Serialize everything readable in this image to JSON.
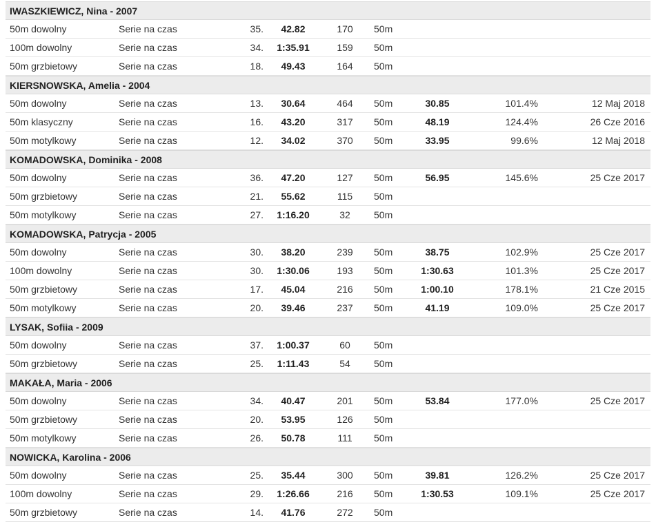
{
  "athletes": [
    {
      "name": "IWASZKIEWICZ, Nina - 2007",
      "results": [
        {
          "event": "50m dowolny",
          "round": "Serie na czas",
          "place": "35.",
          "time": "42.82",
          "points": "170",
          "pool": "50m",
          "best": "",
          "pct": "",
          "date": ""
        },
        {
          "event": "100m dowolny",
          "round": "Serie na czas",
          "place": "34.",
          "time": "1:35.91",
          "points": "159",
          "pool": "50m",
          "best": "",
          "pct": "",
          "date": ""
        },
        {
          "event": "50m grzbietowy",
          "round": "Serie na czas",
          "place": "18.",
          "time": "49.43",
          "points": "164",
          "pool": "50m",
          "best": "",
          "pct": "",
          "date": ""
        }
      ]
    },
    {
      "name": "KIERSNOWSKA, Amelia - 2004",
      "results": [
        {
          "event": "50m dowolny",
          "round": "Serie na czas",
          "place": "13.",
          "time": "30.64",
          "points": "464",
          "pool": "50m",
          "best": "30.85",
          "pct": "101.4%",
          "date": "12 Maj 2018"
        },
        {
          "event": "50m klasyczny",
          "round": "Serie na czas",
          "place": "16.",
          "time": "43.20",
          "points": "317",
          "pool": "50m",
          "best": "48.19",
          "pct": "124.4%",
          "date": "26 Cze 2016"
        },
        {
          "event": "50m motylkowy",
          "round": "Serie na czas",
          "place": "12.",
          "time": "34.02",
          "points": "370",
          "pool": "50m",
          "best": "33.95",
          "pct": "99.6%",
          "date": "12 Maj 2018"
        }
      ]
    },
    {
      "name": "KOMADOWSKA, Dominika - 2008",
      "results": [
        {
          "event": "50m dowolny",
          "round": "Serie na czas",
          "place": "36.",
          "time": "47.20",
          "points": "127",
          "pool": "50m",
          "best": "56.95",
          "pct": "145.6%",
          "date": "25 Cze 2017"
        },
        {
          "event": "50m grzbietowy",
          "round": "Serie na czas",
          "place": "21.",
          "time": "55.62",
          "points": "115",
          "pool": "50m",
          "best": "",
          "pct": "",
          "date": ""
        },
        {
          "event": "50m motylkowy",
          "round": "Serie na czas",
          "place": "27.",
          "time": "1:16.20",
          "points": "32",
          "pool": "50m",
          "best": "",
          "pct": "",
          "date": ""
        }
      ]
    },
    {
      "name": "KOMADOWSKA, Patrycja - 2005",
      "results": [
        {
          "event": "50m dowolny",
          "round": "Serie na czas",
          "place": "30.",
          "time": "38.20",
          "points": "239",
          "pool": "50m",
          "best": "38.75",
          "pct": "102.9%",
          "date": "25 Cze 2017"
        },
        {
          "event": "100m dowolny",
          "round": "Serie na czas",
          "place": "30.",
          "time": "1:30.06",
          "points": "193",
          "pool": "50m",
          "best": "1:30.63",
          "pct": "101.3%",
          "date": "25 Cze 2017"
        },
        {
          "event": "50m grzbietowy",
          "round": "Serie na czas",
          "place": "17.",
          "time": "45.04",
          "points": "216",
          "pool": "50m",
          "best": "1:00.10",
          "pct": "178.1%",
          "date": "21 Cze 2015"
        },
        {
          "event": "50m motylkowy",
          "round": "Serie na czas",
          "place": "20.",
          "time": "39.46",
          "points": "237",
          "pool": "50m",
          "best": "41.19",
          "pct": "109.0%",
          "date": "25 Cze 2017"
        }
      ]
    },
    {
      "name": "LYSAK, Sofiia - 2009",
      "results": [
        {
          "event": "50m dowolny",
          "round": "Serie na czas",
          "place": "37.",
          "time": "1:00.37",
          "points": "60",
          "pool": "50m",
          "best": "",
          "pct": "",
          "date": ""
        },
        {
          "event": "50m grzbietowy",
          "round": "Serie na czas",
          "place": "25.",
          "time": "1:11.43",
          "points": "54",
          "pool": "50m",
          "best": "",
          "pct": "",
          "date": ""
        }
      ]
    },
    {
      "name": "MAKAŁA, Maria - 2006",
      "results": [
        {
          "event": "50m dowolny",
          "round": "Serie na czas",
          "place": "34.",
          "time": "40.47",
          "points": "201",
          "pool": "50m",
          "best": "53.84",
          "pct": "177.0%",
          "date": "25 Cze 2017"
        },
        {
          "event": "50m grzbietowy",
          "round": "Serie na czas",
          "place": "20.",
          "time": "53.95",
          "points": "126",
          "pool": "50m",
          "best": "",
          "pct": "",
          "date": ""
        },
        {
          "event": "50m motylkowy",
          "round": "Serie na czas",
          "place": "26.",
          "time": "50.78",
          "points": "111",
          "pool": "50m",
          "best": "",
          "pct": "",
          "date": ""
        }
      ]
    },
    {
      "name": "NOWICKA, Karolina - 2006",
      "results": [
        {
          "event": "50m dowolny",
          "round": "Serie na czas",
          "place": "25.",
          "time": "35.44",
          "points": "300",
          "pool": "50m",
          "best": "39.81",
          "pct": "126.2%",
          "date": "25 Cze 2017"
        },
        {
          "event": "100m dowolny",
          "round": "Serie na czas",
          "place": "29.",
          "time": "1:26.66",
          "points": "216",
          "pool": "50m",
          "best": "1:30.53",
          "pct": "109.1%",
          "date": "25 Cze 2017"
        },
        {
          "event": "50m grzbietowy",
          "round": "Serie na czas",
          "place": "14.",
          "time": "41.76",
          "points": "272",
          "pool": "50m",
          "best": "",
          "pct": "",
          "date": ""
        }
      ]
    }
  ]
}
